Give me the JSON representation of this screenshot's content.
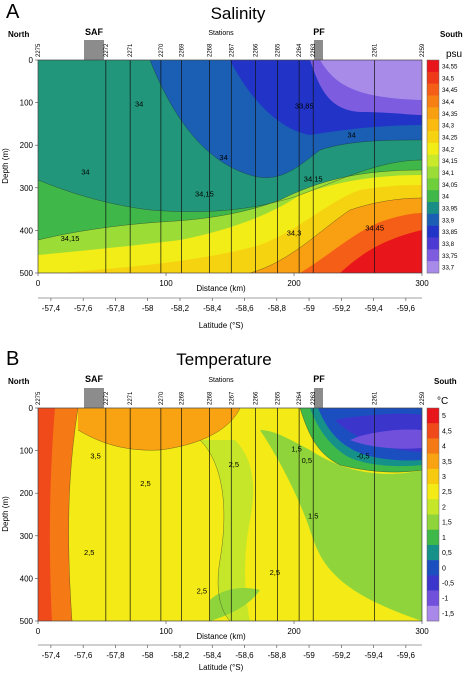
{
  "panels": [
    {
      "letter": "A",
      "title": "Salinity",
      "north": "North",
      "south": "South",
      "stations_label": "Stations",
      "front_left": "SAF",
      "front_right": "PF",
      "ylabel": "Depth (m)",
      "xlabel_distance": "Distance (km)",
      "xlabel_latitude": "Latitude (°S)",
      "unit": "psu"
    },
    {
      "letter": "B",
      "title": "Temperature",
      "north": "North",
      "south": "South",
      "stations_label": "Stations",
      "front_left": "SAF",
      "front_right": "PF",
      "ylabel": "Depth (m)",
      "xlabel_distance": "Distance (km)",
      "xlabel_latitude": "Latitude (°S)",
      "unit": "°C"
    }
  ],
  "chart_data": [
    {
      "type": "heatmap",
      "title": "Salinity",
      "xlabel": "Distance (km)",
      "x2label": "Latitude (°S)",
      "ylabel": "Depth (m)",
      "xlim": [
        0,
        300
      ],
      "ylim": [
        500,
        0
      ],
      "x_ticks": [
        0,
        100,
        200,
        300
      ],
      "x_tick_labels": [
        "0",
        "100",
        "200",
        "300"
      ],
      "y_ticks": [
        0,
        100,
        200,
        300,
        400,
        500
      ],
      "y_tick_labels": [
        "0",
        "100",
        "200",
        "300",
        "400",
        "500"
      ],
      "latitude_ticks": [
        -57.4,
        -57.6,
        -57.8,
        -58,
        -58.2,
        -58.4,
        -58.6,
        -58.8,
        -59,
        -59.2,
        -59.4,
        -59.6
      ],
      "latitude_labels": [
        "-57,4",
        "-57,6",
        "-57,8",
        "-58",
        "-58,2",
        "-58,4",
        "-58,6",
        "-58,8",
        "-59",
        "-59,2",
        "-59,4",
        "-59,6"
      ],
      "stations": [
        "2275",
        "2272",
        "2271",
        "2270",
        "2269",
        "2268",
        "2267",
        "2266",
        "2265",
        "2264",
        "2263",
        "2261",
        "2259"
      ],
      "station_distance_km": [
        0,
        53,
        72,
        96,
        112,
        134,
        151,
        170,
        187,
        204,
        215,
        263,
        300
      ],
      "fronts": [
        {
          "name": "SAF",
          "distance_km": 39
        },
        {
          "name": "PF",
          "distance_km": 207
        }
      ],
      "colorbar_unit": "psu",
      "colorbar_levels": [
        "34,55",
        "34,5",
        "34,45",
        "34,4",
        "34,35",
        "34,3",
        "34,25",
        "34,2",
        "34,15",
        "34,1",
        "34,05",
        "34",
        "33,95",
        "33,9",
        "33,85",
        "33,8",
        "33,75",
        "33,7"
      ],
      "colorbar_colors": [
        "#e8151b",
        "#ef3a1a",
        "#f45e17",
        "#f78015",
        "#f99f12",
        "#fbba0f",
        "#f6d310",
        "#f2ec17",
        "#c8ea2a",
        "#9bdc37",
        "#6fcf3b",
        "#3fb849",
        "#198e86",
        "#1a5fb4",
        "#2233c8",
        "#4d3ad3",
        "#7d5ce0",
        "#a88be8"
      ],
      "contour_labels": [
        {
          "text": "34",
          "x_km": 79,
          "depth_m": 102
        },
        {
          "text": "33,85",
          "x_km": 208,
          "depth_m": 107
        },
        {
          "text": "34",
          "x_km": 245,
          "depth_m": 175
        },
        {
          "text": "34",
          "x_km": 145,
          "depth_m": 228
        },
        {
          "text": "34",
          "x_km": 37,
          "depth_m": 262
        },
        {
          "text": "34,15",
          "x_km": 215,
          "depth_m": 278
        },
        {
          "text": "34,15",
          "x_km": 130,
          "depth_m": 313
        },
        {
          "text": "34,15",
          "x_km": 25,
          "depth_m": 418
        },
        {
          "text": "34,3",
          "x_km": 200,
          "depth_m": 405
        },
        {
          "text": "34,45",
          "x_km": 263,
          "depth_m": 393
        }
      ]
    },
    {
      "type": "heatmap",
      "title": "Temperature",
      "xlabel": "Distance (km)",
      "x2label": "Latitude (°S)",
      "ylabel": "Depth (m)",
      "xlim": [
        0,
        300
      ],
      "ylim": [
        500,
        0
      ],
      "x_ticks": [
        0,
        100,
        200,
        300
      ],
      "x_tick_labels": [
        "0",
        "100",
        "200",
        "300"
      ],
      "y_ticks": [
        0,
        100,
        200,
        300,
        400,
        500
      ],
      "y_tick_labels": [
        "0",
        "100",
        "200",
        "300",
        "400",
        "500"
      ],
      "latitude_ticks": [
        -57.4,
        -57.6,
        -57.8,
        -58,
        -58.2,
        -58.4,
        -58.6,
        -58.8,
        -59,
        -59.2,
        -59.4,
        -59.6
      ],
      "latitude_labels": [
        "-57,4",
        "-57,6",
        "-57,8",
        "-58",
        "-58,2",
        "-58,4",
        "-58,6",
        "-58,8",
        "-59",
        "-59,2",
        "-59,4",
        "-59,6"
      ],
      "stations": [
        "2275",
        "2272",
        "2271",
        "2270",
        "2269",
        "2268",
        "2267",
        "2266",
        "2265",
        "2264",
        "2263",
        "2261",
        "2259"
      ],
      "station_distance_km": [
        0,
        53,
        72,
        96,
        112,
        134,
        151,
        170,
        187,
        204,
        215,
        263,
        300
      ],
      "fronts": [
        {
          "name": "SAF",
          "distance_km": 39
        },
        {
          "name": "PF",
          "distance_km": 207
        }
      ],
      "colorbar_unit": "°C",
      "colorbar_levels": [
        "5",
        "4,5",
        "4",
        "3,5",
        "3",
        "2,5",
        "2",
        "1,5",
        "1",
        "0,5",
        "0",
        "-0,5",
        "-1",
        "-1,5"
      ],
      "colorbar_colors": [
        "#e8151b",
        "#f04a1a",
        "#f57a15",
        "#f9a312",
        "#f7c90f",
        "#f3ea16",
        "#c6e62a",
        "#8fd43a",
        "#3fb84a",
        "#16918a",
        "#1b4fc0",
        "#3b35cc",
        "#7150dc",
        "#a888e8"
      ],
      "contour_labels": [
        {
          "text": "3,5",
          "x_km": 45,
          "depth_m": 112
        },
        {
          "text": "2,5",
          "x_km": 84,
          "depth_m": 176
        },
        {
          "text": "2,5",
          "x_km": 153,
          "depth_m": 132
        },
        {
          "text": "1,5",
          "x_km": 202,
          "depth_m": 95
        },
        {
          "text": "0,5",
          "x_km": 210,
          "depth_m": 122
        },
        {
          "text": "-0,5",
          "x_km": 254,
          "depth_m": 112
        },
        {
          "text": "1,5",
          "x_km": 215,
          "depth_m": 252
        },
        {
          "text": "2,5",
          "x_km": 40,
          "depth_m": 338
        },
        {
          "text": "2,5",
          "x_km": 128,
          "depth_m": 428
        },
        {
          "text": "2,5",
          "x_km": 185,
          "depth_m": 385
        }
      ]
    }
  ]
}
